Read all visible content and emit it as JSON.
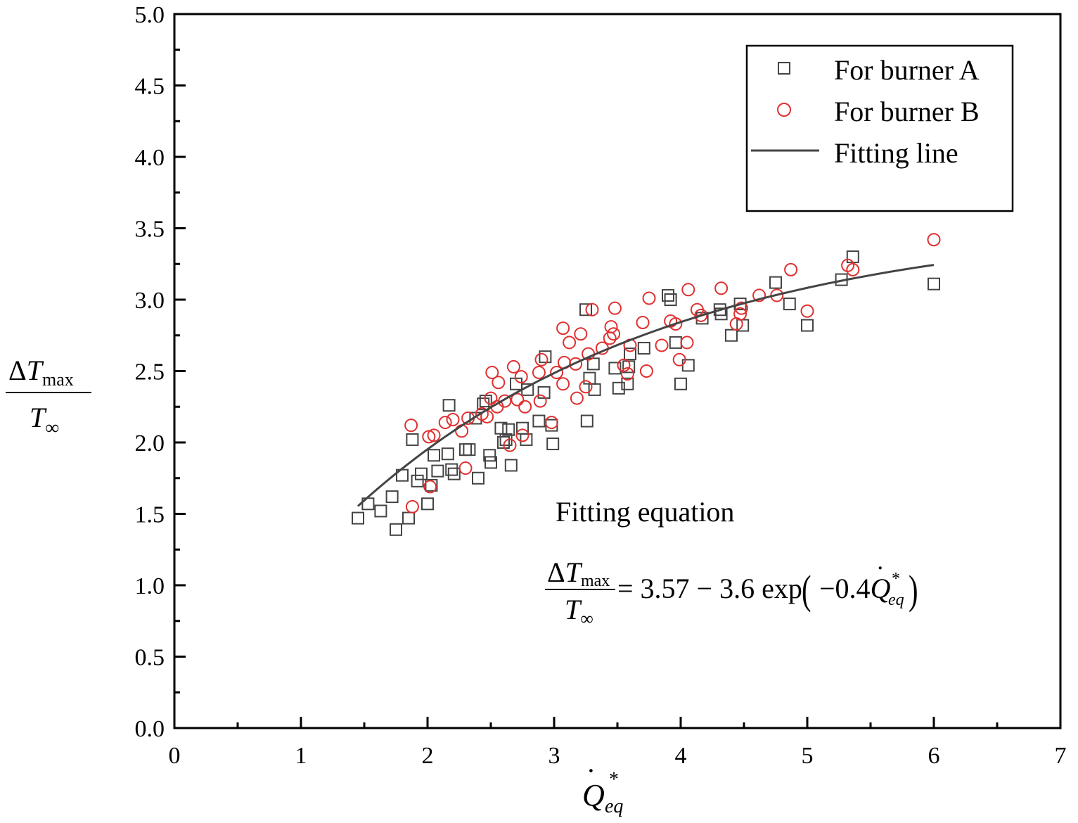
{
  "chart_data": {
    "type": "scatter",
    "xlim": [
      0,
      7
    ],
    "ylim": [
      0,
      5
    ],
    "xticks": [
      "0",
      "1",
      "2",
      "3",
      "4",
      "5",
      "6",
      "7"
    ],
    "yticks": [
      "0.0",
      "0.5",
      "1.0",
      "1.5",
      "2.0",
      "2.5",
      "3.0",
      "3.5",
      "4.0",
      "4.5",
      "5.0"
    ],
    "xlabel": {
      "base": "Q",
      "dot": "˙",
      "sub": "eq",
      "sup": "*"
    },
    "ylabel": {
      "num_delta": "Δ",
      "num_var": "T",
      "num_sub": "max",
      "den_var": "T",
      "den_sub": "∞"
    },
    "legend_position": "top-right",
    "grid": false,
    "series": [
      {
        "name": "For burner A",
        "marker": "square",
        "color": "#444444",
        "points": [
          [
            1.45,
            1.47
          ],
          [
            1.53,
            1.57
          ],
          [
            1.63,
            1.52
          ],
          [
            1.72,
            1.62
          ],
          [
            1.75,
            1.39
          ],
          [
            1.8,
            1.77
          ],
          [
            1.85,
            1.47
          ],
          [
            1.88,
            2.02
          ],
          [
            1.92,
            1.73
          ],
          [
            1.95,
            1.78
          ],
          [
            2.0,
            1.57
          ],
          [
            2.03,
            1.7
          ],
          [
            2.05,
            1.91
          ],
          [
            2.08,
            1.8
          ],
          [
            2.16,
            1.92
          ],
          [
            2.17,
            2.26
          ],
          [
            2.19,
            1.81
          ],
          [
            2.21,
            1.78
          ],
          [
            2.3,
            1.95
          ],
          [
            2.33,
            1.95
          ],
          [
            2.38,
            2.17
          ],
          [
            2.4,
            1.75
          ],
          [
            2.44,
            2.27
          ],
          [
            2.46,
            2.29
          ],
          [
            2.49,
            1.91
          ],
          [
            2.5,
            1.86
          ],
          [
            2.58,
            2.1
          ],
          [
            2.6,
            2.0
          ],
          [
            2.62,
            2.02
          ],
          [
            2.64,
            2.09
          ],
          [
            2.66,
            1.84
          ],
          [
            2.7,
            2.41
          ],
          [
            2.75,
            2.1
          ],
          [
            2.78,
            2.02
          ],
          [
            2.79,
            2.37
          ],
          [
            2.88,
            2.15
          ],
          [
            2.92,
            2.35
          ],
          [
            2.93,
            2.6
          ],
          [
            2.98,
            2.12
          ],
          [
            2.99,
            1.99
          ],
          [
            3.25,
            2.93
          ],
          [
            3.26,
            2.15
          ],
          [
            3.28,
            2.45
          ],
          [
            3.31,
            2.55
          ],
          [
            3.32,
            2.37
          ],
          [
            3.48,
            2.52
          ],
          [
            3.51,
            2.38
          ],
          [
            3.58,
            2.41
          ],
          [
            3.59,
            2.53
          ],
          [
            3.6,
            2.62
          ],
          [
            3.71,
            2.66
          ],
          [
            3.9,
            3.03
          ],
          [
            3.92,
            3.0
          ],
          [
            3.96,
            2.7
          ],
          [
            4.0,
            2.41
          ],
          [
            4.06,
            2.54
          ],
          [
            4.17,
            2.87
          ],
          [
            4.31,
            2.93
          ],
          [
            4.32,
            2.9
          ],
          [
            4.4,
            2.75
          ],
          [
            4.47,
            2.97
          ],
          [
            4.49,
            2.82
          ],
          [
            4.75,
            3.12
          ],
          [
            4.86,
            2.97
          ],
          [
            5.0,
            2.82
          ],
          [
            5.27,
            3.14
          ],
          [
            5.36,
            3.3
          ],
          [
            6.0,
            3.11
          ]
        ]
      },
      {
        "name": "For burner B",
        "marker": "circle",
        "color": "#e03030",
        "points": [
          [
            1.87,
            2.12
          ],
          [
            1.88,
            1.55
          ],
          [
            2.01,
            2.04
          ],
          [
            2.02,
            1.69
          ],
          [
            2.05,
            2.05
          ],
          [
            2.14,
            2.14
          ],
          [
            2.2,
            2.16
          ],
          [
            2.27,
            2.08
          ],
          [
            2.3,
            1.82
          ],
          [
            2.32,
            2.17
          ],
          [
            2.43,
            2.2
          ],
          [
            2.47,
            2.18
          ],
          [
            2.5,
            2.31
          ],
          [
            2.51,
            2.49
          ],
          [
            2.55,
            2.25
          ],
          [
            2.56,
            2.42
          ],
          [
            2.61,
            2.29
          ],
          [
            2.65,
            1.98
          ],
          [
            2.68,
            2.53
          ],
          [
            2.71,
            2.3
          ],
          [
            2.74,
            2.46
          ],
          [
            2.75,
            2.05
          ],
          [
            2.77,
            2.25
          ],
          [
            2.88,
            2.49
          ],
          [
            2.89,
            2.29
          ],
          [
            2.9,
            2.58
          ],
          [
            2.98,
            2.14
          ],
          [
            3.02,
            2.49
          ],
          [
            3.07,
            2.41
          ],
          [
            3.07,
            2.8
          ],
          [
            3.08,
            2.56
          ],
          [
            3.12,
            2.7
          ],
          [
            3.17,
            2.55
          ],
          [
            3.18,
            2.31
          ],
          [
            3.21,
            2.76
          ],
          [
            3.25,
            2.39
          ],
          [
            3.27,
            2.62
          ],
          [
            3.3,
            2.93
          ],
          [
            3.38,
            2.66
          ],
          [
            3.44,
            2.73
          ],
          [
            3.45,
            2.81
          ],
          [
            3.47,
            2.76
          ],
          [
            3.48,
            2.94
          ],
          [
            3.55,
            2.54
          ],
          [
            3.58,
            2.48
          ],
          [
            3.6,
            2.68
          ],
          [
            3.7,
            2.84
          ],
          [
            3.73,
            2.5
          ],
          [
            3.75,
            3.01
          ],
          [
            3.85,
            2.68
          ],
          [
            3.92,
            2.85
          ],
          [
            3.96,
            2.83
          ],
          [
            3.99,
            2.58
          ],
          [
            4.05,
            2.7
          ],
          [
            4.06,
            3.07
          ],
          [
            4.13,
            2.93
          ],
          [
            4.16,
            2.89
          ],
          [
            4.32,
            3.08
          ],
          [
            4.44,
            2.83
          ],
          [
            4.47,
            2.9
          ],
          [
            4.48,
            2.94
          ],
          [
            4.62,
            3.03
          ],
          [
            4.76,
            3.03
          ],
          [
            4.87,
            3.21
          ],
          [
            5.0,
            2.92
          ],
          [
            5.32,
            3.24
          ],
          [
            5.36,
            3.21
          ],
          [
            6.0,
            3.42
          ]
        ]
      },
      {
        "name": "Fitting line",
        "marker": "line",
        "color": "#444444",
        "function": {
          "a": 3.57,
          "b": 3.6,
          "k": 0.4
        },
        "x_range": [
          1.45,
          6.0
        ]
      }
    ],
    "annotation": {
      "title": "Fitting equation",
      "rhs_1": "= 3.57 − 3.6 exp",
      "coef": "−0.4",
      "q": "Q",
      "q_dot": "˙",
      "q_sub": "eq",
      "q_sup": "*"
    }
  }
}
